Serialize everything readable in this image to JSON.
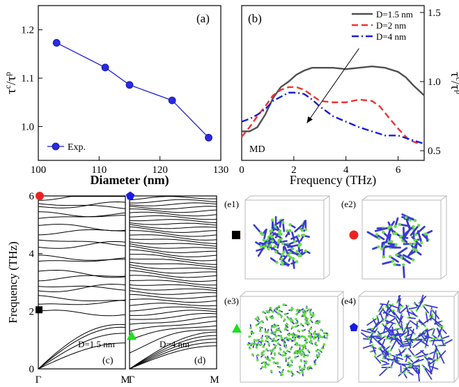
{
  "chart_data": [
    {
      "id": "a",
      "type": "line",
      "panel_label": "(a)",
      "xlabel": "Diameter (nm)",
      "ylabel_base": "τ",
      "ylabel_sup1": "c",
      "ylabel_mid": "/τ",
      "ylabel_sup2": "p",
      "xlim": [
        100,
        130
      ],
      "ylim": [
        0.93,
        1.25
      ],
      "xticks": [
        100,
        110,
        120,
        130
      ],
      "yticks": [
        1.0,
        1.1,
        1.2
      ],
      "xtick_labels": [
        "100",
        "110",
        "120",
        "130"
      ],
      "ytick_labels": [
        "1.0",
        "1.1",
        "1.2"
      ],
      "color": "#1f1fe0",
      "series": [
        {
          "name": "Exp.",
          "x": [
            103,
            111,
            115,
            122,
            128
          ],
          "y": [
            1.173,
            1.122,
            1.086,
            1.054,
            0.977
          ]
        }
      ],
      "legend": "bottom-left"
    },
    {
      "id": "b",
      "type": "line",
      "panel_label": "(b)",
      "annotation": "MD",
      "xlabel": "Frequency (THz)",
      "ylabel_base": "τ",
      "ylabel_sup1": "c",
      "ylabel_mid": "/τ",
      "ylabel_sup2": "p",
      "xlim": [
        0,
        7
      ],
      "ylim": [
        0.43,
        1.55
      ],
      "xticks": [
        0,
        2,
        4,
        6
      ],
      "yticks": [
        0.5,
        1.0,
        1.5
      ],
      "xtick_labels": [
        "0",
        "2",
        "4",
        "6"
      ],
      "ytick_labels": [
        "0.5",
        "1.0",
        "1.5"
      ],
      "legend": "top-right",
      "arrow": {
        "from": [
          4.5,
          1.24
        ],
        "to": [
          2.5,
          0.7
        ]
      },
      "series": [
        {
          "name": "D=1.5 nm",
          "color": "#505050",
          "dash": "solid",
          "x": [
            0,
            0.3,
            0.6,
            0.9,
            1.2,
            1.5,
            1.8,
            2.1,
            2.4,
            2.7,
            3.0,
            3.5,
            4.0,
            4.5,
            5.0,
            5.5,
            6.0,
            6.3,
            6.6,
            7.0
          ],
          "y": [
            0.64,
            0.64,
            0.67,
            0.76,
            0.88,
            0.96,
            1.0,
            1.05,
            1.08,
            1.1,
            1.1,
            1.1,
            1.09,
            1.1,
            1.11,
            1.1,
            1.07,
            1.03,
            0.97,
            0.9
          ]
        },
        {
          "name": "D=2 nm",
          "color": "#ee3333",
          "dash": "dash",
          "x": [
            0,
            0.3,
            0.6,
            0.9,
            1.2,
            1.5,
            1.8,
            2.1,
            2.4,
            2.7,
            3.0,
            3.5,
            4.0,
            4.5,
            5.0,
            5.3,
            5.6,
            6.0,
            6.4,
            6.8
          ],
          "y": [
            0.6,
            0.67,
            0.75,
            0.82,
            0.9,
            0.94,
            0.96,
            0.96,
            0.94,
            0.9,
            0.86,
            0.85,
            0.85,
            0.87,
            0.86,
            0.82,
            0.75,
            0.66,
            0.58,
            0.55
          ]
        },
        {
          "name": "D=4 nm",
          "color": "#1a1adc",
          "dash": "dashdot",
          "x": [
            0,
            0.3,
            0.6,
            0.9,
            1.2,
            1.5,
            1.8,
            2.1,
            2.4,
            2.7,
            3.0,
            3.5,
            4.0,
            4.5,
            5.0,
            5.5,
            6.0,
            6.5,
            7.0
          ],
          "y": [
            0.71,
            0.73,
            0.76,
            0.8,
            0.86,
            0.89,
            0.92,
            0.92,
            0.91,
            0.87,
            0.82,
            0.75,
            0.71,
            0.67,
            0.64,
            0.61,
            0.61,
            0.58,
            0.55
          ]
        }
      ]
    },
    {
      "id": "c",
      "type": "line",
      "panel_label": "(c)",
      "annotation": "D=1.5 nm",
      "ylabel": "Frequency (THz)",
      "ylim": [
        0,
        6
      ],
      "yticks": [
        0,
        2,
        4,
        6
      ],
      "ytick_labels": [
        "0",
        "2",
        "4",
        "6"
      ],
      "xtick_labels": [
        "Γ",
        "M"
      ],
      "optical_frequencies": [
        2.0,
        2.2,
        2.5,
        2.7,
        2.9,
        3.1,
        3.4,
        3.7,
        3.9,
        4.2,
        4.5,
        4.7,
        5.0,
        5.2,
        5.4,
        5.6,
        5.75,
        5.9
      ],
      "acoustic_endpoints": [
        0.9,
        1.3,
        1.6,
        1.8
      ],
      "markers": [
        {
          "shape": "circle",
          "color": "#ee2222",
          "y": 6.0
        },
        {
          "shape": "square",
          "color": "#000000",
          "y": 2.05
        }
      ]
    },
    {
      "id": "d",
      "type": "line",
      "panel_label": "(d)",
      "annotation": "D=4 nm",
      "ylim": [
        0,
        6
      ],
      "xtick_labels": [
        "Γ",
        "M"
      ],
      "line_count": 44,
      "markers": [
        {
          "shape": "pentagon",
          "color": "#1a1adc",
          "y": 6.0
        },
        {
          "shape": "triangle",
          "color": "#22dd22",
          "y": 1.15
        }
      ]
    }
  ],
  "modes": [
    {
      "label": "(e1)",
      "marker": "square",
      "color": "#000000"
    },
    {
      "label": "(e2)",
      "marker": "circle",
      "color": "#ee2222"
    },
    {
      "label": "(e3)",
      "marker": "triangle",
      "color": "#22dd22"
    },
    {
      "label": "(e4)",
      "marker": "pentagon",
      "color": "#1a1adc"
    }
  ],
  "mode_colors": {
    "arrow": "#3a3ad0",
    "atom": "#66dd44"
  }
}
